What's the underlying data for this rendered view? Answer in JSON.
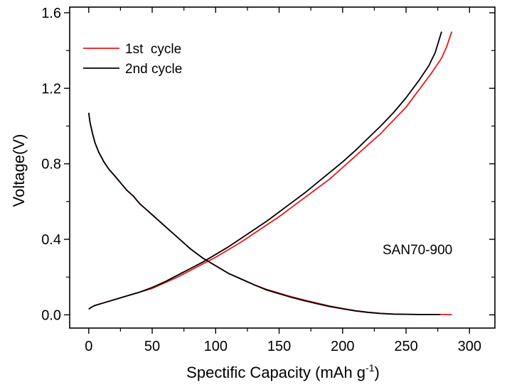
{
  "chart_data": {
    "type": "line",
    "title": "",
    "xlabel": "Spectific Capacity (mAh g",
    "xlabel_sup": "-1",
    "xlabel_end": ")",
    "ylabel": "Voltage(V)",
    "xlim": [
      -15,
      320
    ],
    "ylim": [
      -0.07,
      1.63
    ],
    "xticks": [
      0,
      50,
      100,
      150,
      200,
      250,
      300
    ],
    "xtick_labels": [
      "0",
      "50",
      "100",
      "150",
      "200",
      "250",
      "300"
    ],
    "yticks": [
      0.0,
      0.4,
      0.8,
      1.2,
      1.6
    ],
    "ytick_labels": [
      "0.0",
      "0.4",
      "0.8",
      "1.2",
      "1.6"
    ],
    "grid": false,
    "legend_position": "top-left",
    "annotation": "SAN70-900",
    "series": [
      {
        "name": "1st  cycle",
        "color": "#e8181c",
        "segments": [
          [
            [
              0,
              1.07
            ],
            [
              1,
              1.02
            ],
            [
              3,
              0.96
            ],
            [
              5,
              0.91
            ],
            [
              8,
              0.86
            ],
            [
              12,
              0.81
            ],
            [
              16,
              0.77
            ],
            [
              20,
              0.74
            ],
            [
              25,
              0.7
            ],
            [
              30,
              0.66
            ],
            [
              35,
              0.63
            ],
            [
              40,
              0.59
            ],
            [
              45,
              0.56
            ],
            [
              50,
              0.53
            ],
            [
              55,
              0.5
            ],
            [
              60,
              0.47
            ],
            [
              70,
              0.41
            ],
            [
              80,
              0.35
            ],
            [
              90,
              0.3
            ],
            [
              100,
              0.26
            ],
            [
              110,
              0.22
            ],
            [
              120,
              0.19
            ],
            [
              130,
              0.16
            ],
            [
              140,
              0.135
            ],
            [
              150,
              0.115
            ],
            [
              160,
              0.095
            ],
            [
              170,
              0.078
            ],
            [
              180,
              0.062
            ],
            [
              190,
              0.046
            ],
            [
              200,
              0.034
            ],
            [
              210,
              0.022
            ],
            [
              220,
              0.014
            ],
            [
              230,
              0.008
            ],
            [
              240,
              0.004
            ],
            [
              250,
              0.003
            ],
            [
              260,
              0.002
            ],
            [
              270,
              0.002
            ],
            [
              280,
              0.002
            ],
            [
              286,
              0.001
            ]
          ],
          [
            [
              0,
              0.03
            ],
            [
              2,
              0.04
            ],
            [
              5,
              0.05
            ],
            [
              10,
              0.06
            ],
            [
              20,
              0.08
            ],
            [
              30,
              0.1
            ],
            [
              40,
              0.12
            ],
            [
              50,
              0.14
            ],
            [
              60,
              0.17
            ],
            [
              70,
              0.2
            ],
            [
              80,
              0.235
            ],
            [
              90,
              0.27
            ],
            [
              100,
              0.305
            ],
            [
              110,
              0.345
            ],
            [
              120,
              0.385
            ],
            [
              130,
              0.43
            ],
            [
              140,
              0.475
            ],
            [
              150,
              0.52
            ],
            [
              160,
              0.57
            ],
            [
              170,
              0.62
            ],
            [
              180,
              0.67
            ],
            [
              190,
              0.72
            ],
            [
              200,
              0.78
            ],
            [
              210,
              0.84
            ],
            [
              220,
              0.9
            ],
            [
              230,
              0.96
            ],
            [
              240,
              1.03
            ],
            [
              250,
              1.1
            ],
            [
              260,
              1.19
            ],
            [
              270,
              1.28
            ],
            [
              278,
              1.36
            ],
            [
              282,
              1.42
            ],
            [
              286,
              1.5
            ]
          ]
        ]
      },
      {
        "name": "2nd cycle",
        "color": "#000000",
        "segments": [
          [
            [
              0,
              1.07
            ],
            [
              1,
              1.02
            ],
            [
              3,
              0.96
            ],
            [
              5,
              0.91
            ],
            [
              8,
              0.86
            ],
            [
              12,
              0.81
            ],
            [
              16,
              0.77
            ],
            [
              20,
              0.74
            ],
            [
              25,
              0.7
            ],
            [
              30,
              0.66
            ],
            [
              35,
              0.63
            ],
            [
              40,
              0.59
            ],
            [
              45,
              0.56
            ],
            [
              50,
              0.53
            ],
            [
              55,
              0.5
            ],
            [
              60,
              0.47
            ],
            [
              70,
              0.41
            ],
            [
              80,
              0.35
            ],
            [
              90,
              0.3
            ],
            [
              100,
              0.26
            ],
            [
              110,
              0.22
            ],
            [
              120,
              0.19
            ],
            [
              130,
              0.16
            ],
            [
              140,
              0.132
            ],
            [
              150,
              0.112
            ],
            [
              160,
              0.092
            ],
            [
              170,
              0.075
            ],
            [
              180,
              0.059
            ],
            [
              190,
              0.044
            ],
            [
              200,
              0.032
            ],
            [
              210,
              0.021
            ],
            [
              220,
              0.013
            ],
            [
              230,
              0.007
            ],
            [
              240,
              0.004
            ],
            [
              250,
              0.003
            ],
            [
              260,
              0.002
            ],
            [
              270,
              0.002
            ],
            [
              277,
              0.002
            ]
          ],
          [
            [
              0,
              0.03
            ],
            [
              2,
              0.04
            ],
            [
              5,
              0.05
            ],
            [
              10,
              0.06
            ],
            [
              20,
              0.08
            ],
            [
              30,
              0.1
            ],
            [
              40,
              0.12
            ],
            [
              50,
              0.145
            ],
            [
              60,
              0.175
            ],
            [
              70,
              0.21
            ],
            [
              80,
              0.245
            ],
            [
              90,
              0.28
            ],
            [
              100,
              0.32
            ],
            [
              110,
              0.36
            ],
            [
              120,
              0.405
            ],
            [
              130,
              0.45
            ],
            [
              140,
              0.495
            ],
            [
              150,
              0.545
            ],
            [
              160,
              0.595
            ],
            [
              170,
              0.645
            ],
            [
              180,
              0.7
            ],
            [
              190,
              0.755
            ],
            [
              200,
              0.81
            ],
            [
              210,
              0.87
            ],
            [
              220,
              0.935
            ],
            [
              230,
              1.0
            ],
            [
              240,
              1.07
            ],
            [
              250,
              1.15
            ],
            [
              260,
              1.24
            ],
            [
              268,
              1.32
            ],
            [
              273,
              1.39
            ],
            [
              278,
              1.5
            ]
          ]
        ]
      }
    ]
  }
}
